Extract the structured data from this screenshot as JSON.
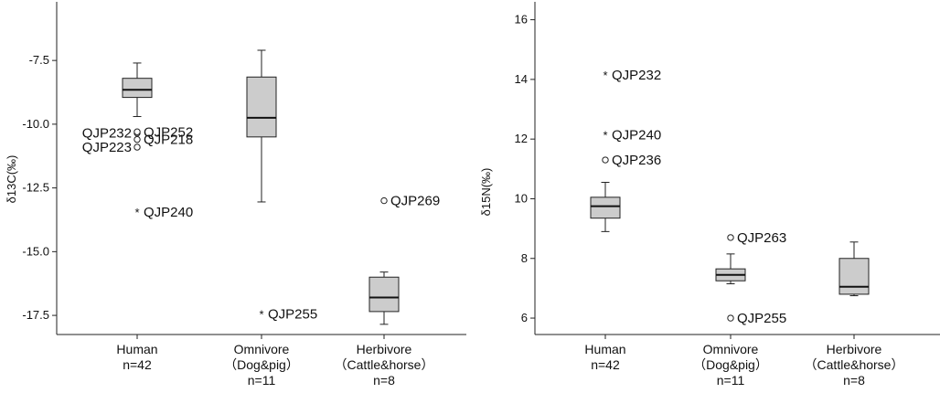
{
  "chart_data": [
    {
      "type": "box",
      "ylabel": "δ13C(‰)",
      "ylim": [
        -18.25,
        -5.2
      ],
      "yticks": [
        -7.5,
        -10.0,
        -12.5,
        -15.0,
        -17.5
      ],
      "ytick_labels": [
        "-7.5",
        "-10.0",
        "-12.5",
        "-15.0",
        "-17.5"
      ],
      "groups": [
        {
          "label_lines": [
            "Human",
            "n=42"
          ],
          "box": {
            "whisker_low": -9.7,
            "q1": -8.95,
            "median": -8.65,
            "q3": -8.2,
            "whisker_high": -7.6
          },
          "outliers": [
            {
              "value": -10.35,
              "marker": "circle",
              "label": "QJP232",
              "label_side": "left"
            },
            {
              "value": -10.3,
              "marker": "circle",
              "label": "QJP252",
              "label_side": "right"
            },
            {
              "value": -10.6,
              "marker": "circle",
              "label": "QJP218",
              "label_side": "right"
            },
            {
              "value": -10.9,
              "marker": "circle",
              "label": "QJP223",
              "label_side": "left"
            },
            {
              "value": -13.45,
              "marker": "star",
              "label": "QJP240",
              "label_side": "right"
            }
          ]
        },
        {
          "label_lines": [
            "Omnivore",
            "（Dog&pig）",
            "n=11"
          ],
          "box": {
            "whisker_low": -13.05,
            "q1": -10.5,
            "median": -9.75,
            "q3": -8.15,
            "whisker_high": -7.1
          },
          "outliers": [
            {
              "value": -17.45,
              "marker": "star",
              "label": "QJP255",
              "label_side": "right"
            }
          ]
        },
        {
          "label_lines": [
            "Herbivore",
            "（Cattle&horse）",
            "n=8"
          ],
          "box": {
            "whisker_low": -17.85,
            "q1": -17.35,
            "median": -16.8,
            "q3": -16.0,
            "whisker_high": -15.8
          },
          "outliers": [
            {
              "value": -13.0,
              "marker": "circle",
              "label": "QJP269",
              "label_side": "right"
            }
          ]
        }
      ]
    },
    {
      "type": "box",
      "ylabel": "δ15N(‰)",
      "ylim": [
        5.45,
        16.6
      ],
      "yticks": [
        16,
        14,
        12,
        10,
        8,
        6
      ],
      "ytick_labels": [
        "16",
        "14",
        "12",
        "10",
        "8",
        "6"
      ],
      "groups": [
        {
          "label_lines": [
            "Human",
            "n=42"
          ],
          "box": {
            "whisker_low": 8.9,
            "q1": 9.35,
            "median": 9.75,
            "q3": 10.05,
            "whisker_high": 10.55
          },
          "outliers": [
            {
              "value": 14.15,
              "marker": "star",
              "label": "QJP232",
              "label_side": "right"
            },
            {
              "value": 12.15,
              "marker": "star",
              "label": "QJP240",
              "label_side": "right"
            },
            {
              "value": 11.3,
              "marker": "circle",
              "label": "QJP236",
              "label_side": "right"
            }
          ]
        },
        {
          "label_lines": [
            "Omnivore",
            "（Dog&pig）",
            "n=11"
          ],
          "box": {
            "whisker_low": 7.15,
            "q1": 7.25,
            "median": 7.45,
            "q3": 7.65,
            "whisker_high": 8.15
          },
          "outliers": [
            {
              "value": 8.7,
              "marker": "circle",
              "label": "QJP263",
              "label_side": "right"
            },
            {
              "value": 6.0,
              "marker": "circle",
              "label": "QJP255",
              "label_side": "right"
            }
          ]
        },
        {
          "label_lines": [
            "Herbivore",
            "（Cattle&horse）",
            "n=8"
          ],
          "box": {
            "whisker_low": 6.75,
            "q1": 6.8,
            "median": 7.05,
            "q3": 8.0,
            "whisker_high": 8.55
          },
          "outliers": []
        }
      ]
    }
  ]
}
